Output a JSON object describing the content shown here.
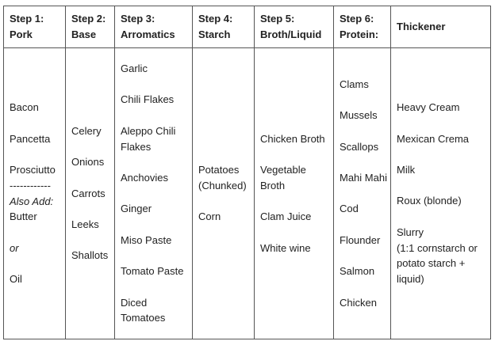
{
  "headers": [
    "Step 1: Pork",
    "Step 2: Base",
    "Step 3: Arromatics",
    "Step 4: Starch",
    "Step 5: Broth/Liquid",
    "Step 6: Protein:",
    "Thickener"
  ],
  "header_lines": [
    [
      "Step 1:",
      "Pork"
    ],
    [
      "Step 2:",
      "Base"
    ],
    [
      "Step 3:",
      "Arromatics"
    ],
    [
      "Step 4:",
      "Starch"
    ],
    [
      "Step 5:",
      "Broth/Liquid"
    ],
    [
      "Step 6:",
      "Protein:"
    ],
    [
      "Thickener"
    ]
  ],
  "pork": {
    "items": [
      "Bacon",
      "Pancetta",
      "Prosciutto"
    ],
    "divider": "------------",
    "also_add_label": "Also Add:",
    "also_add": [
      "Butter",
      "Oil"
    ],
    "or_label": "or"
  },
  "base": [
    "Celery",
    "Onions",
    "Carrots",
    "Leeks",
    "Shallots"
  ],
  "aromatics": [
    "Garlic",
    "Chili Flakes",
    "Aleppo Chili Flakes",
    "Anchovies",
    "Ginger",
    "Miso Paste",
    "Tomato Paste",
    "Diced Tomatoes"
  ],
  "starch": [
    "Potatoes (Chunked)",
    "Corn"
  ],
  "broth": [
    "Chicken Broth",
    "Vegetable Broth",
    "Clam Juice",
    "White wine"
  ],
  "protein": [
    "Clams",
    "Mussels",
    "Scallops",
    "Mahi Mahi",
    "Cod",
    "Flounder",
    "Salmon",
    "Chicken"
  ],
  "thickener": {
    "items": [
      "Heavy Cream",
      "Mexican Crema",
      "Milk",
      "Roux (blonde)",
      "Slurry"
    ],
    "slurry_note": "(1:1 cornstarch or potato starch + liquid)"
  }
}
